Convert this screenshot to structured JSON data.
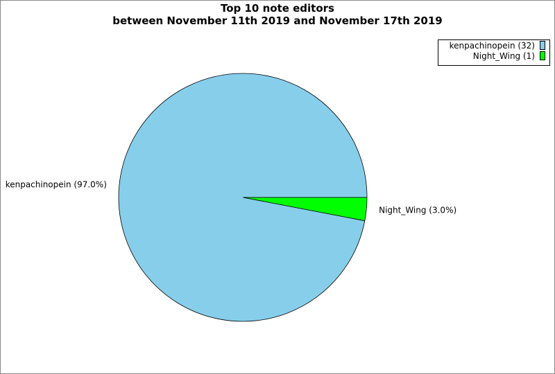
{
  "chart_data": {
    "type": "pie",
    "title": "Top 10 note editors",
    "subtitle": "between November 11th 2019 and November 17th 2019",
    "slices": [
      {
        "label": "kenpachinopein",
        "value": 32,
        "percent_label": "kenpachinopein (97.0%)",
        "legend_label": "kenpachinopein (32)",
        "color": "#87CEEB"
      },
      {
        "label": "Night_Wing",
        "value": 1,
        "percent_label": "Night_Wing (3.0%)",
        "legend_label": "Night_Wing (1)",
        "color": "#00FF00"
      }
    ],
    "legend_position": "top-right"
  }
}
